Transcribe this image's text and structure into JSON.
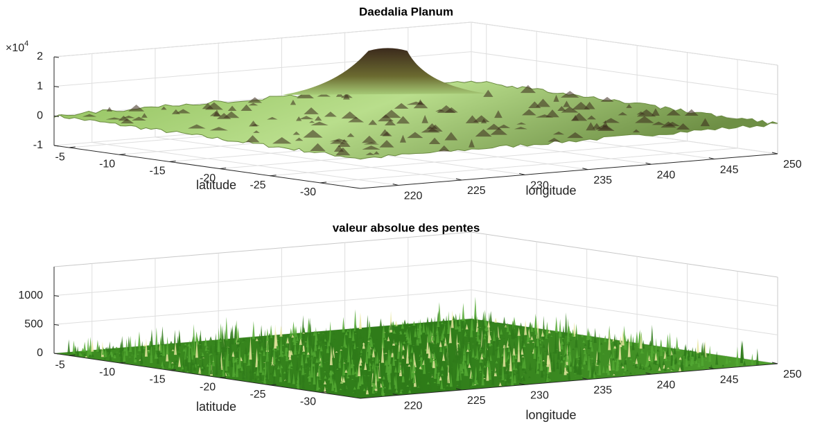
{
  "chart_data": [
    {
      "type": "surface",
      "title": "Daedalia Planum",
      "xlabel": "longitude",
      "ylabel": "latitude",
      "xlim": [
        217,
        250
      ],
      "xticks": [
        220,
        225,
        230,
        235,
        240,
        245,
        250
      ],
      "ylim": [
        -3.5,
        -34
      ],
      "yticks": [
        -5,
        -10,
        -15,
        -20,
        -25,
        -30
      ],
      "zlim": [
        -1,
        2
      ],
      "zticks": [
        -1,
        0,
        1,
        2
      ],
      "zscale": {
        "base": "×10",
        "exponent": 4
      },
      "grid": true,
      "colors": [
        "#3b2a1c",
        "#6b8a3a",
        "#b8e08a"
      ]
    },
    {
      "type": "surface",
      "title": "valeur absolue des pentes",
      "xlabel": "longitude",
      "ylabel": "latitude",
      "xlim": [
        217,
        250
      ],
      "xticks": [
        220,
        225,
        230,
        235,
        240,
        245,
        250
      ],
      "ylim": [
        -3.5,
        -34
      ],
      "yticks": [
        -5,
        -10,
        -15,
        -20,
        -25,
        -30
      ],
      "zlim": [
        0,
        1500
      ],
      "zticks": [
        0,
        500,
        1000
      ],
      "grid": true,
      "colors": [
        "#2f7a1a",
        "#52a833",
        "#e8e6a0"
      ]
    }
  ]
}
